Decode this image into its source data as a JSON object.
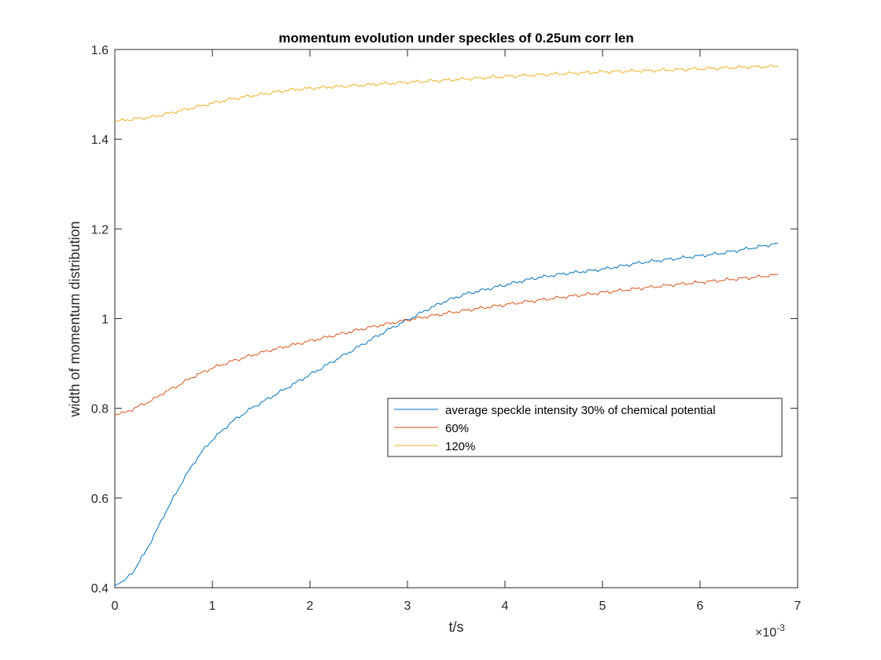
{
  "chart_data": {
    "type": "line",
    "title": "momentum evolution under speckles of 0.25um corr len",
    "xlabel": "t/s",
    "ylabel": "width of momentum distribution",
    "x_exponent_label": "×10",
    "x_exponent_power": "-3",
    "xlim": [
      0,
      7
    ],
    "ylim": [
      0.4,
      1.6
    ],
    "x_ticks": [
      0,
      1,
      2,
      3,
      4,
      5,
      6,
      7
    ],
    "x_tick_labels": [
      "0",
      "1",
      "2",
      "3",
      "4",
      "5",
      "6",
      "7"
    ],
    "y_ticks": [
      0.4,
      0.6,
      0.8,
      1.0,
      1.2,
      1.4,
      1.6
    ],
    "y_tick_labels": [
      "0.4",
      "0.6",
      "0.8",
      "1",
      "1.2",
      "1.4",
      "1.6"
    ],
    "grid": false,
    "legend_position": "center-right",
    "series": [
      {
        "name": "average speckle intensity 30% of chemical potential",
        "color": "#0072BD",
        "x": [
          0,
          0.1,
          0.2,
          0.3,
          0.4,
          0.5,
          0.6,
          0.7,
          0.8,
          0.9,
          1.0,
          1.2,
          1.4,
          1.6,
          1.8,
          2.0,
          2.2,
          2.4,
          2.6,
          2.8,
          3.0,
          3.2,
          3.4,
          3.6,
          3.8,
          4.0,
          4.3,
          4.6,
          5.0,
          5.4,
          5.8,
          6.2,
          6.6,
          6.8
        ],
        "y": [
          0.405,
          0.415,
          0.44,
          0.475,
          0.515,
          0.56,
          0.6,
          0.64,
          0.675,
          0.705,
          0.73,
          0.77,
          0.8,
          0.825,
          0.85,
          0.875,
          0.9,
          0.925,
          0.95,
          0.975,
          0.997,
          1.02,
          1.04,
          1.055,
          1.065,
          1.075,
          1.09,
          1.1,
          1.11,
          1.125,
          1.135,
          1.145,
          1.16,
          1.168
        ]
      },
      {
        "name": "60%",
        "color": "#D95319",
        "x": [
          0,
          0.1,
          0.2,
          0.3,
          0.4,
          0.5,
          0.6,
          0.8,
          1.0,
          1.2,
          1.4,
          1.6,
          1.8,
          2.0,
          2.3,
          2.6,
          3.0,
          3.4,
          3.8,
          4.2,
          4.6,
          5.0,
          5.4,
          5.8,
          6.2,
          6.6,
          6.8
        ],
        "y": [
          0.785,
          0.79,
          0.8,
          0.81,
          0.82,
          0.835,
          0.845,
          0.87,
          0.89,
          0.905,
          0.918,
          0.93,
          0.94,
          0.95,
          0.965,
          0.98,
          0.997,
          1.012,
          1.025,
          1.037,
          1.048,
          1.058,
          1.068,
          1.077,
          1.085,
          1.093,
          1.098
        ]
      },
      {
        "name": "120%",
        "color": "#EDB120",
        "x": [
          0,
          0.2,
          0.4,
          0.6,
          0.8,
          1.0,
          1.2,
          1.5,
          1.8,
          2.1,
          2.5,
          3.0,
          3.5,
          4.0,
          4.5,
          5.0,
          5.5,
          6.0,
          6.5,
          6.8
        ],
        "y": [
          1.44,
          1.445,
          1.45,
          1.46,
          1.47,
          1.48,
          1.49,
          1.5,
          1.51,
          1.515,
          1.52,
          1.527,
          1.533,
          1.54,
          1.545,
          1.55,
          1.553,
          1.557,
          1.561,
          1.562
        ]
      }
    ]
  }
}
